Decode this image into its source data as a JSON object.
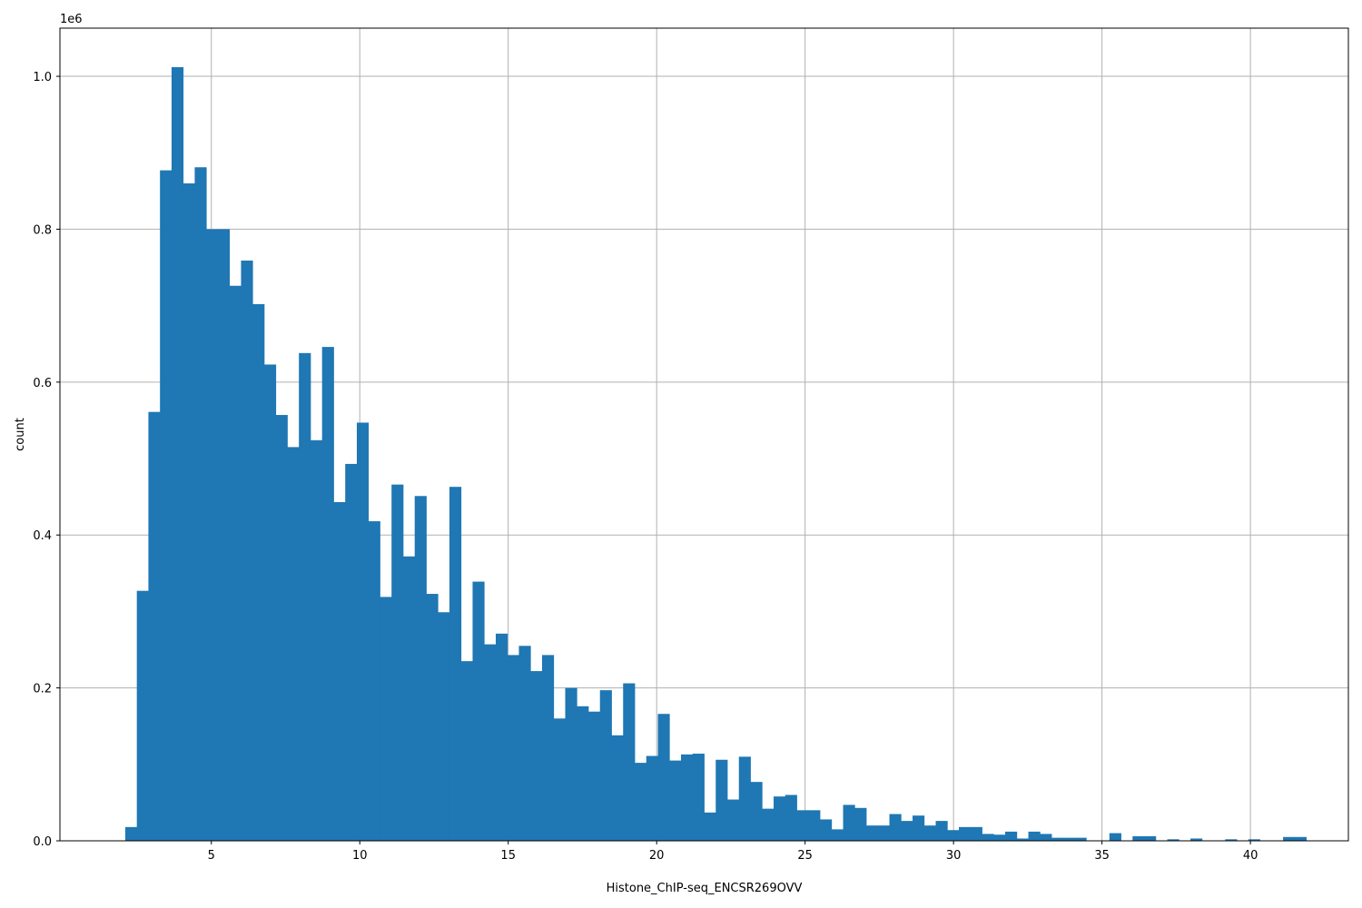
{
  "chart_data": {
    "type": "bar",
    "title": "",
    "xlabel": "Histone_ChIP-seq_ENCSR269OVV",
    "ylabel": "count",
    "y_offset_label": "1e6",
    "xlim": [
      -0.1,
      43.3
    ],
    "ylim": [
      0,
      1.063
    ],
    "x_ticks": [
      5,
      10,
      15,
      20,
      25,
      30,
      35,
      40
    ],
    "y_ticks": [
      0.0,
      0.2,
      0.4,
      0.6,
      0.8,
      1.0
    ],
    "x_tick_labels": [
      "5",
      "10",
      "15",
      "20",
      "25",
      "30",
      "35",
      "40"
    ],
    "y_tick_labels": [
      "0.0",
      "0.2",
      "0.4",
      "0.6",
      "0.8",
      "1.0"
    ],
    "grid": true,
    "bar_color": "#1f77b4",
    "bin_start": 2.1,
    "bin_width": 0.39,
    "values": [
      0.018,
      0.327,
      0.561,
      0.877,
      1.012,
      0.86,
      0.881,
      0.8,
      0.8,
      0.726,
      0.759,
      0.702,
      0.623,
      0.557,
      0.515,
      0.638,
      0.524,
      0.646,
      0.443,
      0.493,
      0.547,
      0.418,
      0.319,
      0.466,
      0.372,
      0.451,
      0.323,
      0.299,
      0.463,
      0.235,
      0.339,
      0.257,
      0.271,
      0.243,
      0.255,
      0.222,
      0.243,
      0.16,
      0.2,
      0.176,
      0.169,
      0.197,
      0.138,
      0.206,
      0.102,
      0.111,
      0.166,
      0.105,
      0.113,
      0.114,
      0.037,
      0.106,
      0.054,
      0.11,
      0.077,
      0.042,
      0.058,
      0.06,
      0.04,
      0.04,
      0.028,
      0.015,
      0.047,
      0.043,
      0.02,
      0.02,
      0.035,
      0.026,
      0.033,
      0.02,
      0.026,
      0.014,
      0.018,
      0.018,
      0.009,
      0.008,
      0.012,
      0.003,
      0.012,
      0.009,
      0.004,
      0.004,
      0.004,
      0.0,
      0.0,
      0.01,
      0.0,
      0.006,
      0.006,
      0.0,
      0.002,
      0.0,
      0.003,
      0.0,
      0.0,
      0.002,
      0.0,
      0.002,
      0.0,
      0.0,
      0.005,
      0.005
    ]
  }
}
